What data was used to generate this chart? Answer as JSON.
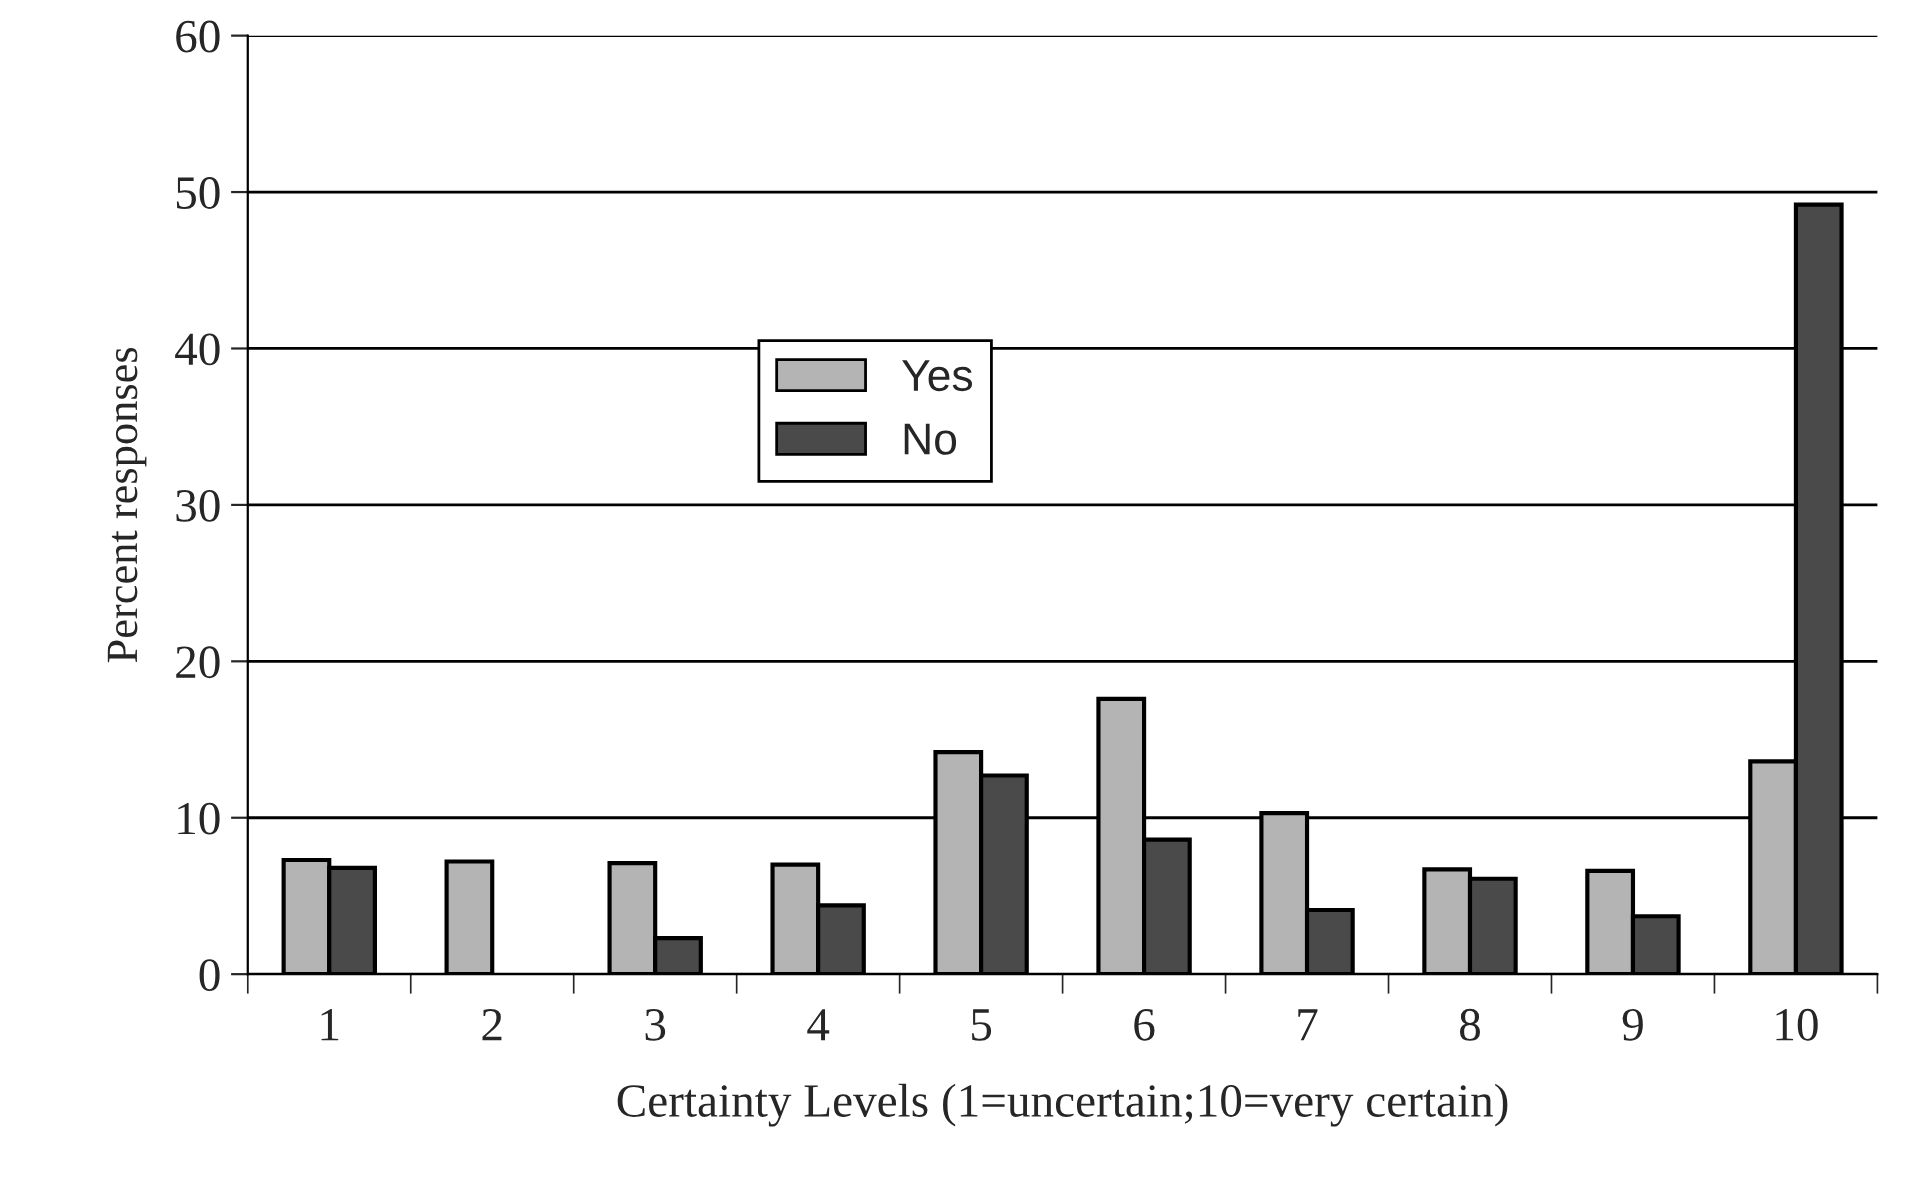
{
  "chart_data": {
    "type": "bar",
    "xlabel": "Certainty Levels (1=uncertain;10=very certain)",
    "ylabel": "Percent responses",
    "categories": [
      "1",
      "2",
      "3",
      "4",
      "5",
      "6",
      "7",
      "8",
      "9",
      "10"
    ],
    "series": [
      {
        "name": "Yes",
        "color": "#b4b4b4",
        "values": [
          7.3,
          7.2,
          7.1,
          7.0,
          14.2,
          17.6,
          10.3,
          6.7,
          6.6,
          13.6
        ]
      },
      {
        "name": "No",
        "color": "#4a4a4a",
        "values": [
          6.8,
          null,
          2.3,
          4.4,
          12.7,
          8.6,
          4.1,
          6.1,
          3.7,
          49.2
        ]
      }
    ],
    "ylim": [
      0,
      60
    ],
    "yticks": [
      0,
      10,
      20,
      30,
      40,
      50,
      60
    ],
    "grid": "y",
    "legend": "center"
  }
}
